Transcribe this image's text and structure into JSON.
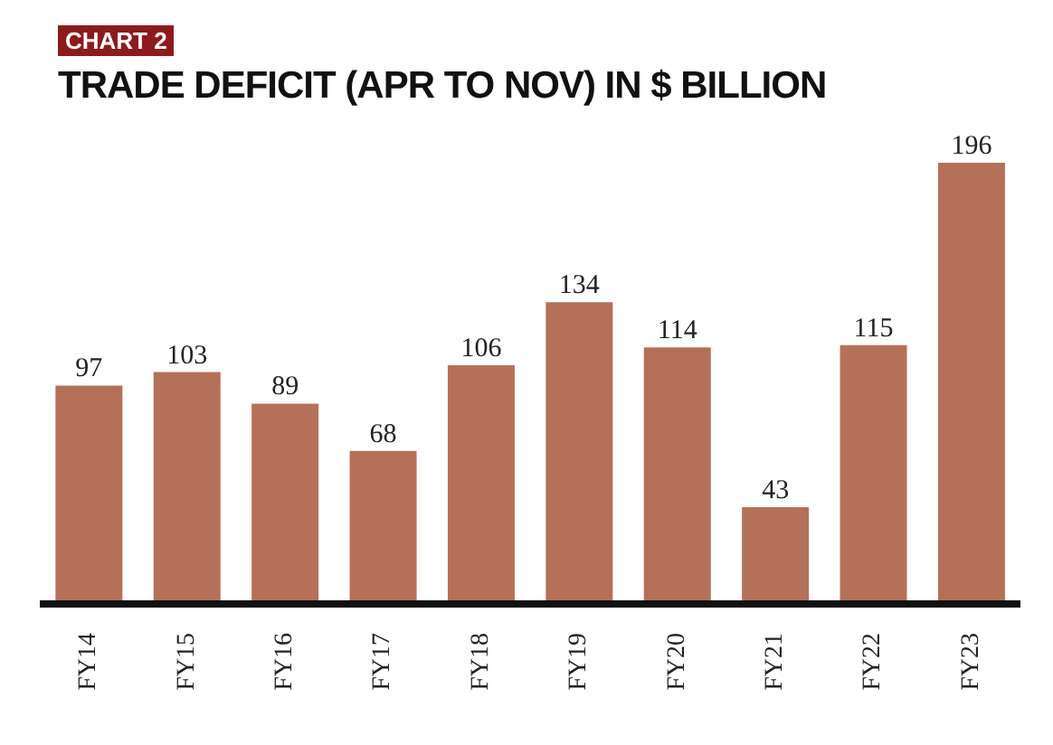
{
  "chart_data": {
    "type": "bar",
    "title": "TRADE DEFICIT (APR TO NOV) IN $ BILLION",
    "annotations": [
      "CHART 2"
    ],
    "categories": [
      "FY14",
      "FY15",
      "FY16",
      "FY17",
      "FY18",
      "FY19",
      "FY20",
      "FY21",
      "FY22",
      "FY23"
    ],
    "values": [
      97,
      103,
      89,
      68,
      106,
      134,
      114,
      43,
      115,
      196
    ],
    "color": "#b5705a",
    "data_labels": true
  }
}
